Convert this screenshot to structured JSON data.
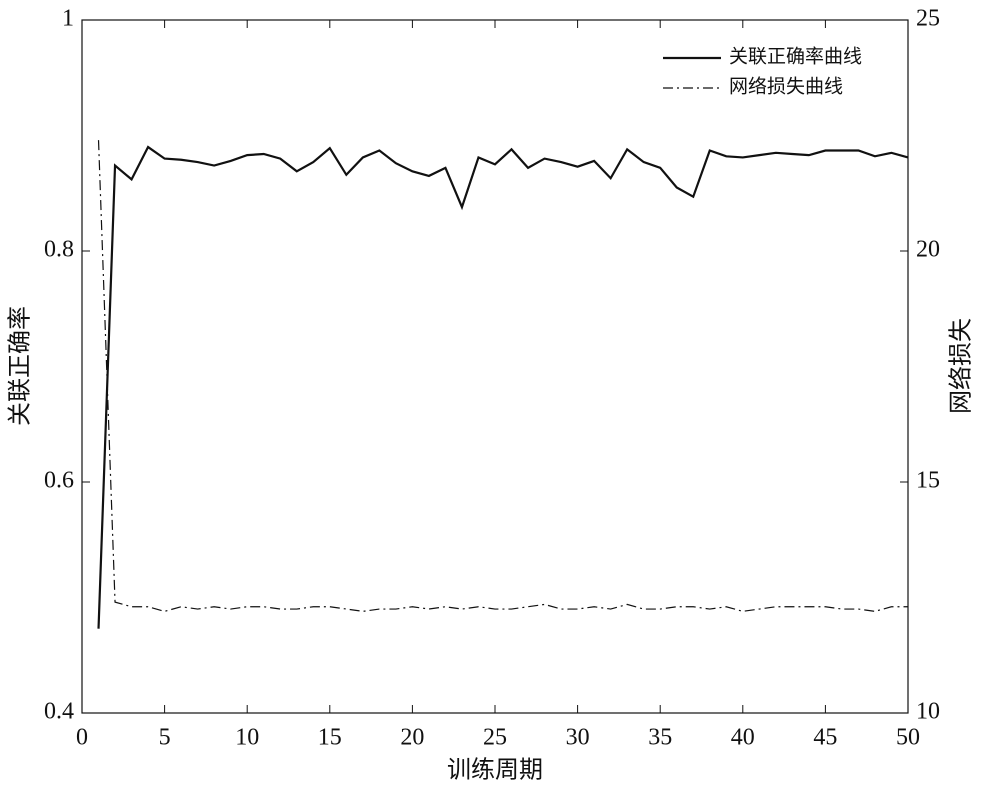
{
  "chart_data": {
    "type": "line",
    "x_label": "训练周期",
    "y_label": "关联正确率",
    "y2_label": "网络损失",
    "x": [
      1,
      2,
      3,
      4,
      5,
      6,
      7,
      8,
      9,
      10,
      11,
      12,
      13,
      14,
      15,
      16,
      17,
      18,
      19,
      20,
      21,
      22,
      23,
      24,
      25,
      26,
      27,
      28,
      29,
      30,
      31,
      32,
      33,
      34,
      35,
      36,
      37,
      38,
      39,
      40,
      41,
      42,
      43,
      44,
      45,
      46,
      47,
      48,
      49,
      50
    ],
    "series": [
      {
        "name": "关联正确率曲线",
        "color": "#111111",
        "linestyle": "solid",
        "axis": "y",
        "values": [
          0.473,
          0.874,
          0.862,
          0.89,
          0.88,
          0.879,
          0.877,
          0.874,
          0.878,
          0.883,
          0.884,
          0.88,
          0.869,
          0.877,
          0.889,
          0.866,
          0.881,
          0.887,
          0.876,
          0.869,
          0.865,
          0.872,
          0.838,
          0.881,
          0.875,
          0.888,
          0.872,
          0.88,
          0.877,
          0.873,
          0.878,
          0.863,
          0.888,
          0.877,
          0.872,
          0.855,
          0.847,
          0.887,
          0.882,
          0.881,
          0.883,
          0.885,
          0.884,
          0.883,
          0.887,
          0.887,
          0.887,
          0.882,
          0.885,
          0.881
        ]
      },
      {
        "name": "网络损失曲线",
        "color": "#111111",
        "linestyle": "dashdot",
        "axis": "y2",
        "values": [
          22.4,
          12.4,
          12.3,
          12.3,
          12.2,
          12.3,
          12.25,
          12.3,
          12.25,
          12.3,
          12.3,
          12.25,
          12.25,
          12.3,
          12.3,
          12.25,
          12.2,
          12.25,
          12.25,
          12.3,
          12.25,
          12.3,
          12.25,
          12.3,
          12.25,
          12.25,
          12.3,
          12.35,
          12.25,
          12.25,
          12.3,
          12.25,
          12.35,
          12.25,
          12.25,
          12.3,
          12.3,
          12.25,
          12.3,
          12.2,
          12.25,
          12.3,
          12.3,
          12.3,
          12.3,
          12.25,
          12.25,
          12.2,
          12.3,
          12.3
        ]
      }
    ],
    "xlim": [
      0,
      50
    ],
    "xticks": [
      0,
      5,
      10,
      15,
      20,
      25,
      30,
      35,
      40,
      45,
      50
    ],
    "ylim": [
      0.4,
      1
    ],
    "yticks": [
      0.4,
      0.6,
      0.8,
      1
    ],
    "y2lim": [
      10,
      25
    ],
    "y2ticks": [
      10,
      15,
      20,
      25
    ],
    "legend": "upper right",
    "grid": false
  }
}
